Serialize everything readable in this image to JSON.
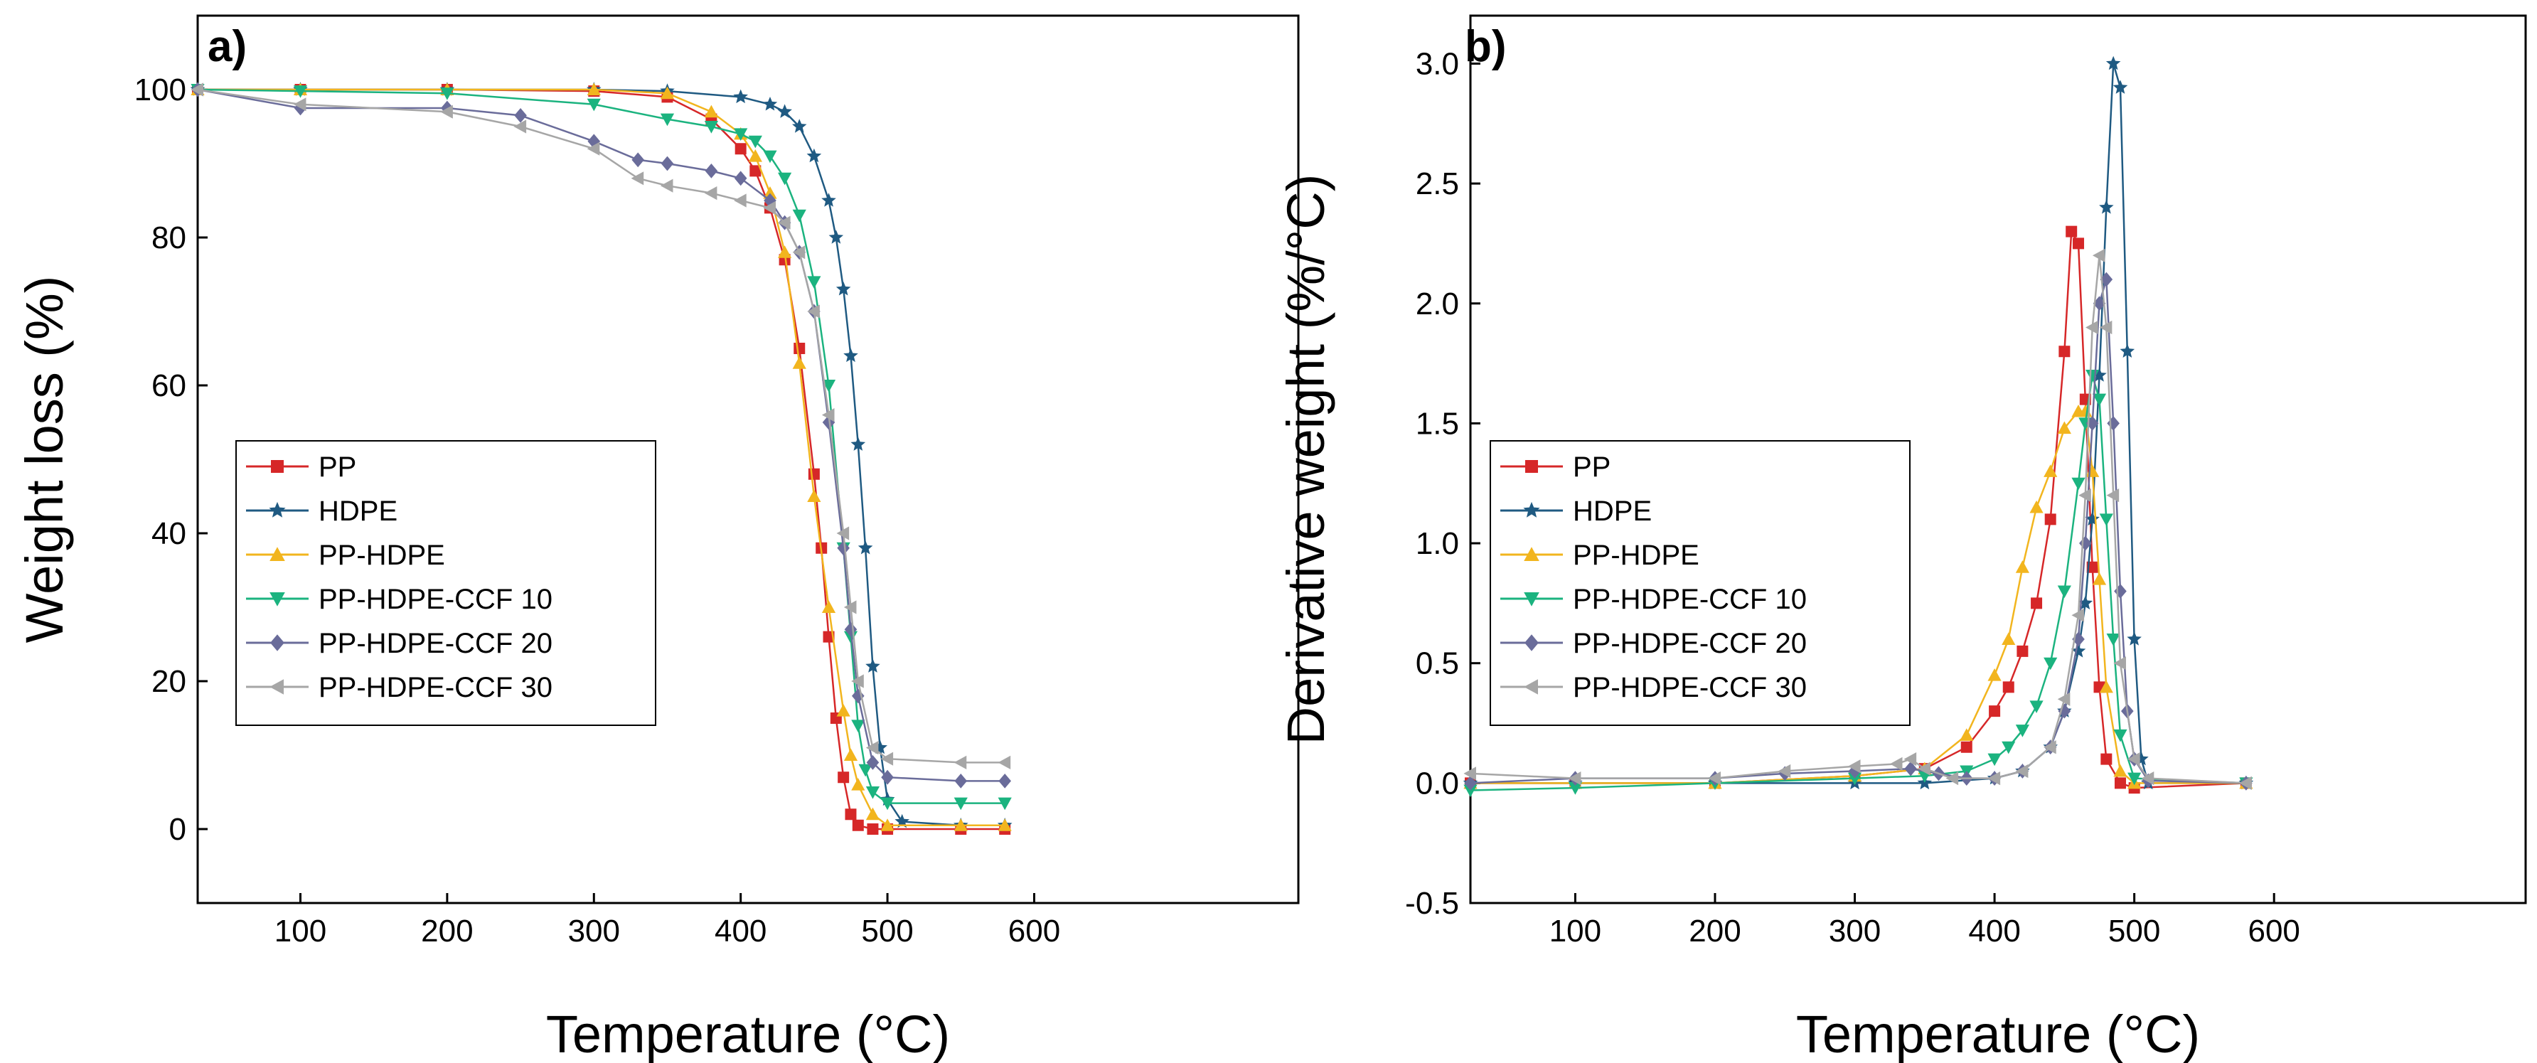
{
  "chart_data": [
    {
      "panel": "a)",
      "type": "line",
      "xlabel": "Temperature (°C)",
      "ylabel": "Weight loss (%)",
      "xlim": [
        30,
        780
      ],
      "ylim": [
        -10,
        110
      ],
      "xticks": [
        100,
        200,
        300,
        400,
        500,
        600
      ],
      "yticks": [
        0,
        20,
        40,
        60,
        80,
        100
      ],
      "legend_position": "middle-left",
      "series": [
        {
          "name": "PP",
          "color": "#d62728",
          "marker": "square",
          "x": [
            30,
            100,
            200,
            300,
            350,
            380,
            400,
            410,
            420,
            430,
            440,
            450,
            455,
            460,
            465,
            470,
            475,
            480,
            490,
            500,
            550,
            580
          ],
          "y": [
            100,
            100,
            100,
            99.8,
            99,
            96,
            92,
            89,
            84,
            77,
            65,
            48,
            38,
            26,
            15,
            7,
            2,
            0.5,
            0,
            0,
            0,
            0
          ]
        },
        {
          "name": "HDPE",
          "color": "#1f5a82",
          "marker": "star",
          "x": [
            30,
            100,
            200,
            300,
            350,
            400,
            420,
            430,
            440,
            450,
            460,
            465,
            470,
            475,
            480,
            485,
            490,
            495,
            500,
            510,
            550,
            580
          ],
          "y": [
            100,
            100,
            100,
            100,
            99.8,
            99,
            98,
            97,
            95,
            91,
            85,
            80,
            73,
            64,
            52,
            38,
            22,
            11,
            4,
            1,
            0.5,
            0.5
          ]
        },
        {
          "name": "PP-HDPE",
          "color": "#f2b51e",
          "marker": "triangle-up",
          "x": [
            30,
            100,
            200,
            300,
            350,
            380,
            400,
            410,
            420,
            430,
            440,
            450,
            460,
            470,
            475,
            480,
            490,
            500,
            550,
            580
          ],
          "y": [
            100,
            100,
            100,
            100,
            99.5,
            97,
            94,
            91,
            86,
            78,
            63,
            45,
            30,
            16,
            10,
            6,
            2,
            0.5,
            0.5,
            0.5
          ]
        },
        {
          "name": "PP-HDPE-CCF 10",
          "color": "#1bb37f",
          "marker": "triangle-down",
          "x": [
            30,
            100,
            200,
            300,
            350,
            380,
            400,
            410,
            420,
            430,
            440,
            450,
            460,
            470,
            475,
            480,
            485,
            490,
            500,
            550,
            580
          ],
          "y": [
            100,
            99.8,
            99.5,
            98,
            96,
            95,
            94,
            93,
            91,
            88,
            83,
            74,
            60,
            38,
            26,
            14,
            8,
            5,
            3.5,
            3.5,
            3.5
          ]
        },
        {
          "name": "PP-HDPE-CCF 20",
          "color": "#6a6c9a",
          "marker": "diamond",
          "x": [
            30,
            100,
            200,
            250,
            300,
            330,
            350,
            380,
            400,
            420,
            430,
            440,
            450,
            460,
            470,
            475,
            480,
            490,
            500,
            550,
            580
          ],
          "y": [
            100,
            97.5,
            97.5,
            96.5,
            93,
            90.5,
            90,
            89,
            88,
            85,
            82,
            78,
            70,
            55,
            38,
            27,
            18,
            9,
            7,
            6.5,
            6.5
          ]
        },
        {
          "name": "PP-HDPE-CCF 30",
          "color": "#a6a6a6",
          "marker": "triangle-left",
          "x": [
            30,
            100,
            200,
            250,
            300,
            330,
            350,
            380,
            400,
            420,
            430,
            440,
            450,
            460,
            470,
            475,
            480,
            490,
            500,
            550,
            580
          ],
          "y": [
            100,
            98,
            97,
            95,
            92,
            88,
            87,
            86,
            85,
            84,
            82,
            78,
            70,
            56,
            40,
            30,
            20,
            11,
            9.5,
            9,
            9
          ]
        }
      ]
    },
    {
      "panel": "b)",
      "type": "line",
      "xlabel": "Temperature (°C)",
      "ylabel": "Derivative weight (%/°C)",
      "xlim": [
        25,
        780
      ],
      "ylim": [
        -0.5,
        3.2
      ],
      "xticks": [
        100,
        200,
        300,
        400,
        500,
        600
      ],
      "yticks": [
        -0.5,
        0.0,
        0.5,
        1.0,
        1.5,
        2.0,
        2.5,
        3.0
      ],
      "legend_position": "middle-left",
      "series": [
        {
          "name": "PP",
          "color": "#d62728",
          "marker": "square",
          "x": [
            25,
            100,
            200,
            300,
            350,
            380,
            400,
            410,
            420,
            430,
            440,
            450,
            455,
            460,
            465,
            470,
            475,
            480,
            490,
            500,
            580
          ],
          "y": [
            0,
            0,
            0,
            0.03,
            0.06,
            0.15,
            0.3,
            0.4,
            0.55,
            0.75,
            1.1,
            1.8,
            2.3,
            2.25,
            1.6,
            0.9,
            0.4,
            0.1,
            0,
            -0.02,
            0
          ]
        },
        {
          "name": "HDPE",
          "color": "#1f5a82",
          "marker": "star",
          "x": [
            25,
            100,
            200,
            300,
            350,
            400,
            420,
            440,
            450,
            460,
            465,
            470,
            475,
            480,
            485,
            490,
            495,
            500,
            505,
            510,
            580
          ],
          "y": [
            0,
            0,
            0,
            0,
            0,
            0.02,
            0.05,
            0.15,
            0.3,
            0.55,
            0.75,
            1.1,
            1.7,
            2.4,
            3.0,
            2.9,
            1.8,
            0.6,
            0.1,
            0,
            0
          ]
        },
        {
          "name": "PP-HDPE",
          "color": "#f2b51e",
          "marker": "triangle-up",
          "x": [
            25,
            100,
            200,
            300,
            350,
            380,
            400,
            410,
            420,
            430,
            440,
            450,
            460,
            465,
            470,
            475,
            480,
            490,
            500,
            580
          ],
          "y": [
            0,
            0,
            0,
            0.03,
            0.06,
            0.2,
            0.45,
            0.6,
            0.9,
            1.15,
            1.3,
            1.48,
            1.55,
            1.55,
            1.3,
            0.85,
            0.4,
            0.05,
            0,
            0
          ]
        },
        {
          "name": "PP-HDPE-CCF 10",
          "color": "#1bb37f",
          "marker": "triangle-down",
          "x": [
            25,
            100,
            200,
            300,
            350,
            380,
            400,
            410,
            420,
            430,
            440,
            450,
            460,
            465,
            470,
            475,
            480,
            485,
            490,
            500,
            580
          ],
          "y": [
            -0.03,
            -0.02,
            0,
            0.02,
            0.03,
            0.05,
            0.1,
            0.15,
            0.22,
            0.32,
            0.5,
            0.8,
            1.25,
            1.5,
            1.7,
            1.6,
            1.1,
            0.6,
            0.2,
            0.02,
            0
          ]
        },
        {
          "name": "PP-HDPE-CCF 20",
          "color": "#6a6c9a",
          "marker": "diamond",
          "x": [
            25,
            100,
            200,
            250,
            300,
            340,
            360,
            380,
            400,
            420,
            440,
            450,
            460,
            465,
            470,
            475,
            480,
            485,
            490,
            495,
            500,
            510,
            580
          ],
          "y": [
            0,
            0.02,
            0.02,
            0.04,
            0.05,
            0.06,
            0.04,
            0.02,
            0.02,
            0.05,
            0.15,
            0.3,
            0.6,
            1.0,
            1.5,
            2.0,
            2.1,
            1.5,
            0.8,
            0.3,
            0.1,
            0.01,
            0
          ]
        },
        {
          "name": "PP-HDPE-CCF 30",
          "color": "#a6a6a6",
          "marker": "triangle-left",
          "x": [
            25,
            100,
            200,
            250,
            300,
            330,
            340,
            350,
            370,
            400,
            420,
            440,
            450,
            460,
            465,
            470,
            475,
            480,
            485,
            490,
            500,
            510,
            580
          ],
          "y": [
            0.04,
            0.02,
            0.02,
            0.05,
            0.07,
            0.08,
            0.1,
            0.06,
            0.02,
            0.02,
            0.05,
            0.15,
            0.35,
            0.7,
            1.2,
            1.9,
            2.2,
            1.9,
            1.2,
            0.5,
            0.1,
            0.02,
            0
          ]
        }
      ]
    }
  ]
}
